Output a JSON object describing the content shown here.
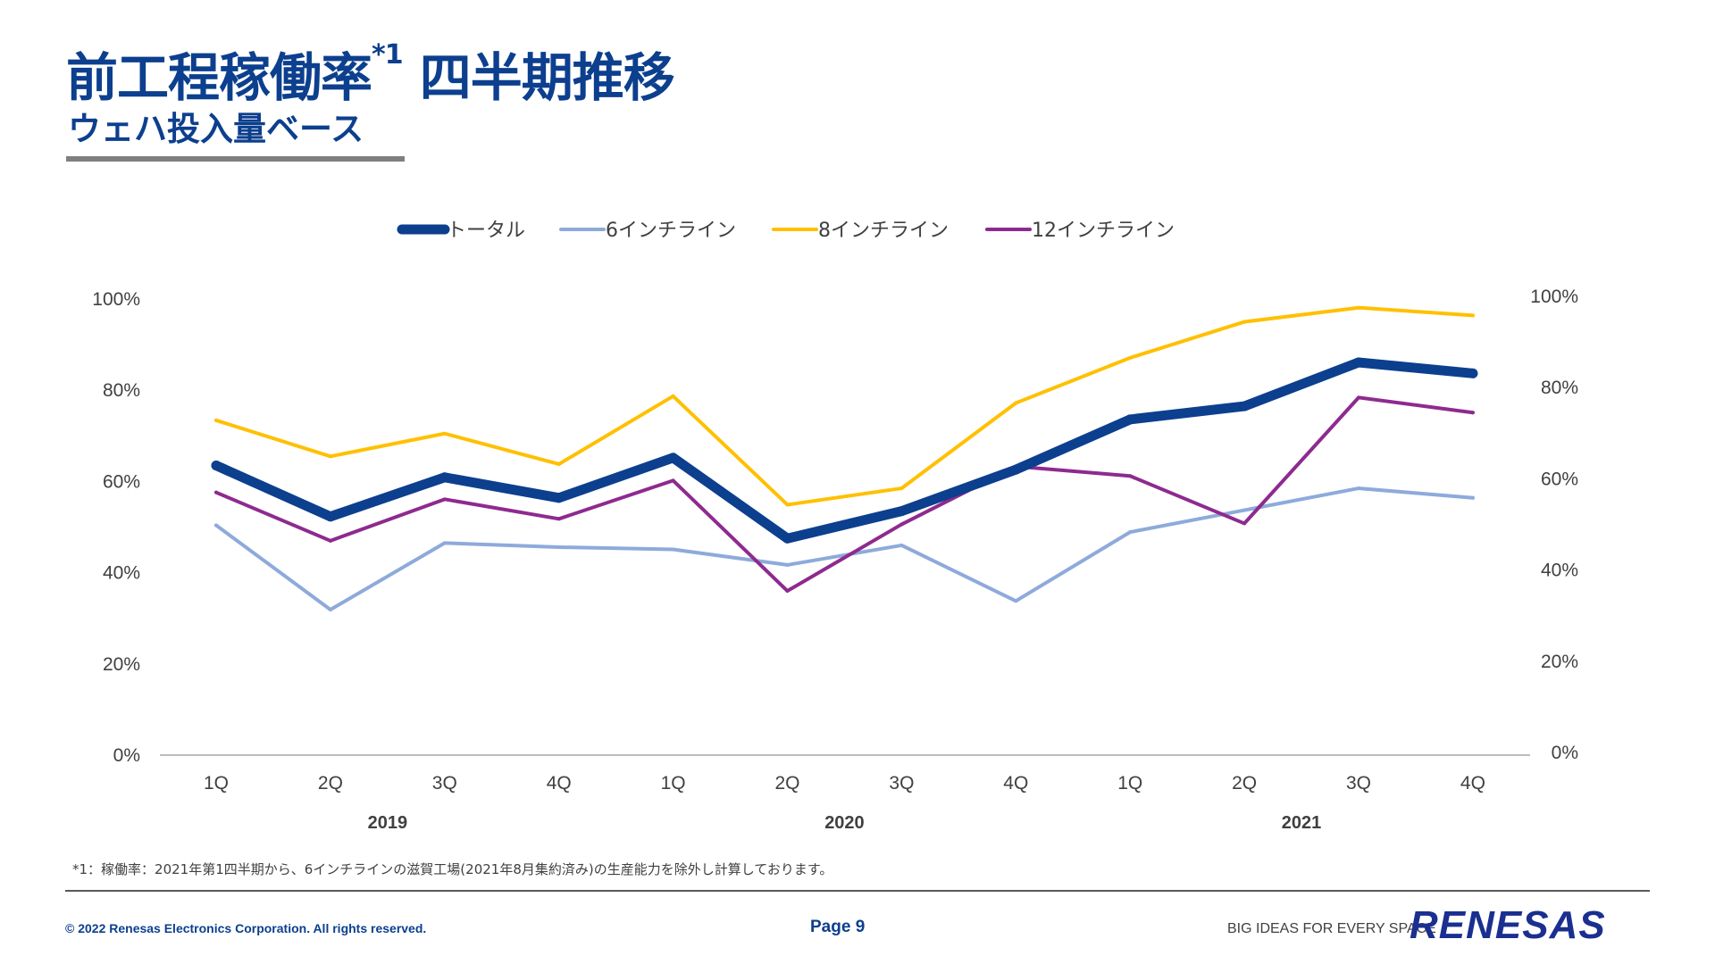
{
  "header": {
    "title": "前工程稼働率",
    "title_sup": "*1",
    "title_rest": " 四半期推移",
    "subtitle": "ウェハ投入量ベース"
  },
  "chart_data": {
    "type": "line",
    "title": "",
    "xlabel": "",
    "ylabel": "",
    "ylim": [
      0,
      100
    ],
    "y_ticks": [
      "0%",
      "20%",
      "40%",
      "60%",
      "80%",
      "100%"
    ],
    "y_ticks_right": [
      "0%",
      "20%",
      "40%",
      "60%",
      "80%",
      "100%"
    ],
    "categories": [
      "1Q",
      "2Q",
      "3Q",
      "4Q",
      "1Q",
      "2Q",
      "3Q",
      "4Q",
      "1Q",
      "2Q",
      "3Q",
      "4Q"
    ],
    "year_groups": [
      "2019",
      "2020",
      "2021"
    ],
    "grid": false,
    "legend_position": "top",
    "series": [
      {
        "name": "トータル",
        "color": "#0c3f8e",
        "values": [
          63.5,
          52.3,
          60.9,
          56.4,
          65.2,
          47.5,
          53.5,
          62.6,
          73.6,
          76.5,
          86.1,
          83.7
        ]
      },
      {
        "name": "6インチライン",
        "color": "#8eaadb",
        "values": [
          50.4,
          31.9,
          46.5,
          45.6,
          45.1,
          41.7,
          46.0,
          33.8,
          48.9,
          53.7,
          58.5,
          56.4
        ]
      },
      {
        "name": "8インチライン",
        "color": "#ffc000",
        "values": [
          73.4,
          65.5,
          70.5,
          63.8,
          78.7,
          54.9,
          58.5,
          77.2,
          87.1,
          95.0,
          98.1,
          96.4
        ]
      },
      {
        "name": "12インチライン",
        "color": "#8e2a8f",
        "values": [
          57.6,
          47.0,
          56.1,
          51.8,
          60.2,
          36.0,
          50.6,
          63.3,
          61.2,
          50.8,
          78.4,
          75.1
        ]
      }
    ]
  },
  "footnote": "*1：稼働率：2021年第1四半期から、6インチラインの滋賀工場(2021年8月集約済み)の生産能力を除外し計算しております。",
  "footer": {
    "copyright": "© 2022 Renesas Electronics Corporation. All rights reserved.",
    "page": "Page 9",
    "tagline": "BIG IDEAS FOR EVERY SPACE",
    "logo": "RENESAS"
  }
}
